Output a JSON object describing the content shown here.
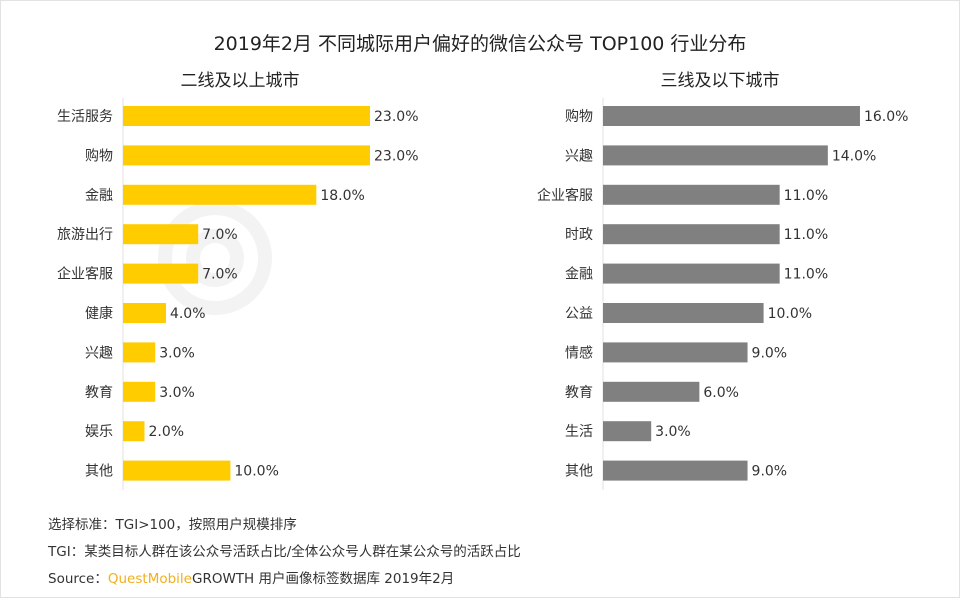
{
  "chart_data": [
    {
      "type": "bar",
      "orientation": "horizontal",
      "title": "二线及以上城市",
      "categories": [
        "生活服务",
        "购物",
        "金融",
        "旅游出行",
        "企业客服",
        "健康",
        "兴趣",
        "教育",
        "娱乐",
        "其他"
      ],
      "values": [
        23.0,
        23.0,
        18.0,
        7.0,
        7.0,
        4.0,
        3.0,
        3.0,
        2.0,
        10.0
      ],
      "labels": [
        "23.0%",
        "23.0%",
        "18.0%",
        "7.0%",
        "7.0%",
        "4.0%",
        "3.0%",
        "3.0%",
        "2.0%",
        "10.0%"
      ],
      "color": "#FFCC00",
      "grid": false
    },
    {
      "type": "bar",
      "orientation": "horizontal",
      "title": "三线及以下城市",
      "categories": [
        "购物",
        "兴趣",
        "企业客服",
        "时政",
        "金融",
        "公益",
        "情感",
        "教育",
        "生活",
        "其他"
      ],
      "values": [
        16.0,
        14.0,
        11.0,
        11.0,
        11.0,
        10.0,
        9.0,
        6.0,
        3.0,
        9.0
      ],
      "labels": [
        "16.0%",
        "14.0%",
        "11.0%",
        "11.0%",
        "11.0%",
        "10.0%",
        "9.0%",
        "6.0%",
        "3.0%",
        "9.0%"
      ],
      "color": "#808080",
      "grid": false
    }
  ],
  "title": "2019年2月 不同城际用户偏好的微信公众号 TOP100 行业分布",
  "watermark": "QUESTMOBILE",
  "footer": {
    "line1": "选择标准：TGI>100，按照用户规模排序",
    "line2": "TGI：某类目标人群在该公众号活跃占比/全体公众号人群在某公众号的活跃占比",
    "source_prefix": "Source：",
    "source_brand": "QuestMobile",
    "source_rest": "GROWTH 用户画像标签数据库  2019年2月"
  }
}
